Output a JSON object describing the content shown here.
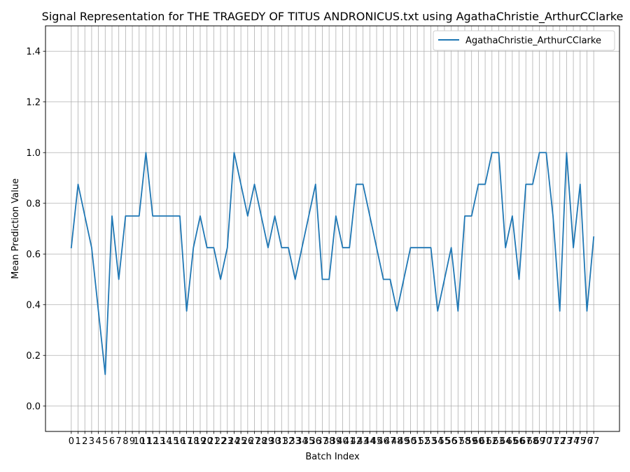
{
  "chart_data": {
    "type": "line",
    "title": "Signal Representation for THE TRAGEDY OF TITUS ANDRONICUS.txt using AgathaChristie_ArthurCClarke",
    "xlabel": "Batch Index",
    "ylabel": "Mean Prediction Value",
    "xlim": [
      -3.8,
      80.8
    ],
    "ylim": [
      -0.1,
      1.5
    ],
    "yticks": [
      0.0,
      0.2,
      0.4,
      0.6,
      0.8,
      1.0,
      1.2,
      1.4
    ],
    "ytick_labels": [
      "0.0",
      "0.2",
      "0.4",
      "0.6",
      "0.8",
      "1.0",
      "1.2",
      "1.4"
    ],
    "xticks": [
      0,
      1,
      2,
      3,
      4,
      5,
      6,
      7,
      8,
      9,
      10,
      11,
      12,
      13,
      14,
      15,
      16,
      17,
      18,
      19,
      20,
      21,
      22,
      23,
      24,
      25,
      26,
      27,
      28,
      29,
      30,
      31,
      32,
      33,
      34,
      35,
      36,
      37,
      38,
      39,
      40,
      41,
      42,
      43,
      44,
      45,
      46,
      47,
      48,
      49,
      50,
      51,
      52,
      53,
      54,
      55,
      56,
      57,
      58,
      59,
      60,
      61,
      62,
      63,
      64,
      65,
      66,
      67,
      68,
      69,
      70,
      71,
      72,
      73,
      74,
      75,
      76,
      77
    ],
    "xtick_labels": [
      "0",
      "1",
      "2",
      "3",
      "4",
      "5",
      "6",
      "7",
      "8",
      "9",
      "10",
      "11",
      "12",
      "13",
      "14",
      "15",
      "16",
      "17",
      "18",
      "19",
      "20",
      "21",
      "22",
      "23",
      "24",
      "25",
      "26",
      "27",
      "28",
      "29",
      "30",
      "31",
      "32",
      "33",
      "34",
      "35",
      "36",
      "37",
      "38",
      "39",
      "40",
      "41",
      "42",
      "43",
      "44",
      "45",
      "46",
      "47",
      "48",
      "49",
      "50",
      "51",
      "52",
      "53",
      "54",
      "55",
      "56",
      "57",
      "58",
      "59",
      "60",
      "61",
      "62",
      "63",
      "64",
      "65",
      "66",
      "67",
      "68",
      "69",
      "70",
      "71",
      "72",
      "73",
      "74",
      "75",
      "76",
      "77"
    ],
    "grid": true,
    "legend_position": "top-right",
    "series": [
      {
        "name": "AgathaChristie_ArthurCClarke",
        "color": "#1f77b4",
        "x": [
          0,
          1,
          2,
          3,
          4,
          5,
          6,
          7,
          8,
          9,
          10,
          11,
          12,
          13,
          14,
          15,
          16,
          17,
          18,
          19,
          20,
          21,
          22,
          23,
          24,
          25,
          26,
          27,
          28,
          29,
          30,
          31,
          32,
          33,
          34,
          35,
          36,
          37,
          38,
          39,
          40,
          41,
          42,
          43,
          44,
          45,
          46,
          47,
          48,
          49,
          50,
          51,
          52,
          53,
          54,
          55,
          56,
          57,
          58,
          59,
          60,
          61,
          62,
          63,
          64,
          65,
          66,
          67,
          68,
          69,
          70,
          71,
          72,
          73,
          74,
          75,
          76,
          77
        ],
        "values": [
          0.625,
          0.875,
          0.75,
          0.625,
          0.375,
          0.125,
          0.75,
          0.5,
          0.75,
          0.75,
          0.75,
          1.0,
          0.75,
          0.75,
          0.75,
          0.75,
          0.75,
          0.375,
          0.625,
          0.75,
          0.625,
          0.625,
          0.5,
          0.625,
          1.0,
          0.875,
          0.75,
          0.875,
          0.75,
          0.625,
          0.75,
          0.625,
          0.625,
          0.5,
          0.625,
          0.75,
          0.875,
          0.5,
          0.5,
          0.75,
          0.625,
          0.625,
          0.875,
          0.875,
          0.75,
          0.625,
          0.5,
          0.5,
          0.375,
          0.5,
          0.625,
          0.625,
          0.625,
          0.625,
          0.375,
          0.5,
          0.625,
          0.375,
          0.75,
          0.75,
          0.875,
          0.875,
          1.0,
          1.0,
          0.625,
          0.75,
          0.5,
          0.875,
          0.875,
          1.0,
          1.0,
          0.75,
          0.375,
          1.0,
          0.625,
          0.875,
          0.375,
          0.667
        ]
      }
    ]
  }
}
